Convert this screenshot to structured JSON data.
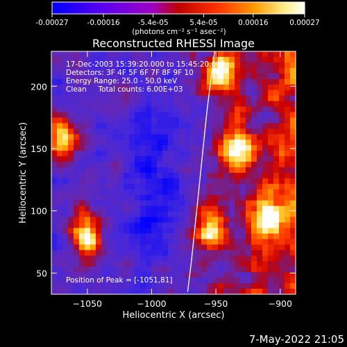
{
  "footer_timestamp": "7-May-2022 21:05",
  "colorbar": {
    "tick_labels": [
      "-0.00027",
      "-0.00016",
      "-5.4e-05",
      "5.4e-05",
      "0.00016",
      "0.00027"
    ],
    "ticks": [
      -0.00027,
      -0.00016,
      -5.4e-05,
      5.4e-05,
      0.00016,
      0.00027
    ],
    "range": [
      -0.00027,
      0.00027
    ],
    "unit_label": "(photons cm⁻² s⁻¹ asec⁻²)",
    "colors": [
      "#0000ff",
      "#7a00e8",
      "#c00000",
      "#ff4000",
      "#ff9900",
      "#ffffff"
    ]
  },
  "info": {
    "line1": "17-Dec-2003 15:39:20.000 to 15:45:20.000",
    "line2": "Detectors: 3F 4F 5F 6F 7F 8F 9F 10",
    "line3": "Energy Range: 25.0 - 50.0 keV",
    "line4": "Clean     Total counts: 6.00E+03",
    "peak": "Position of Peak = [-1051,81]"
  },
  "chart_data": {
    "type": "heatmap",
    "title": "Reconstructed RHESSI Image",
    "xlabel": "Heliocentric X (arcsec)",
    "ylabel": "Heliocentric Y (arcsec)",
    "xlim": [
      -1078,
      -888
    ],
    "ylim": [
      33,
      228
    ],
    "x_ticks": [
      -1050,
      -1000,
      -950,
      -900
    ],
    "x_tick_labels": [
      "−1050",
      "−1000",
      "−950",
      "−900"
    ],
    "y_ticks": [
      50,
      100,
      150,
      200
    ],
    "y_tick_labels": [
      "50",
      "100",
      "150",
      "200"
    ],
    "limb_curve": [
      [
        -972,
        35
      ],
      [
        -969,
        60
      ],
      [
        -966,
        90
      ],
      [
        -963,
        120
      ],
      [
        -960,
        150
      ],
      [
        -957,
        180
      ],
      [
        -954,
        205
      ],
      [
        -951,
        228
      ]
    ],
    "bright_sources": [
      {
        "x": -1051,
        "y": 81,
        "level": 0.00027
      },
      {
        "x": -1068,
        "y": 160,
        "level": 0.00018
      },
      {
        "x": -945,
        "y": 210,
        "level": 0.00022
      },
      {
        "x": -935,
        "y": 150,
        "level": 0.00022
      },
      {
        "x": -910,
        "y": 95,
        "level": 0.00024
      },
      {
        "x": -955,
        "y": 85,
        "level": 0.0002
      }
    ]
  }
}
